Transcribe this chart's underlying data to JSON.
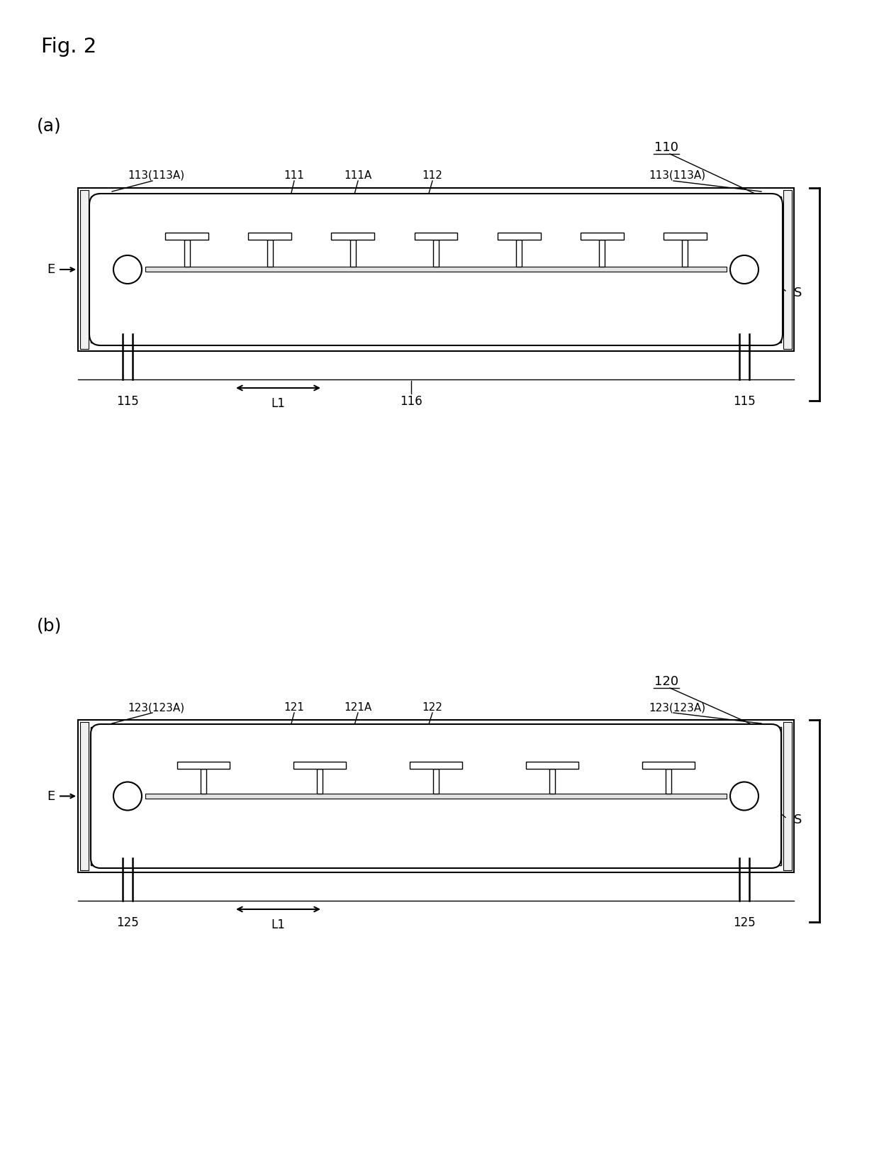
{
  "fig_label": "Fig. 2",
  "panel_a_label": "(a)",
  "panel_b_label": "(b)",
  "ref_110": "110",
  "ref_111": "111",
  "ref_111A": "111A",
  "ref_112": "112",
  "ref_113a_left": "113(113A)",
  "ref_113a_right": "113(113A)",
  "ref_115_left": "115",
  "ref_115_right": "115",
  "ref_116": "116",
  "ref_E": "E",
  "ref_S": "S",
  "ref_L1": "L1",
  "ref_120": "120",
  "ref_121": "121",
  "ref_121A": "121A",
  "ref_122": "122",
  "ref_123a_left": "123(123A)",
  "ref_123a_right": "123(123A)",
  "ref_125_left": "125",
  "ref_125_right": "125",
  "ref_L1b": "L1",
  "ref_Eb": "E",
  "ref_Sb": "S",
  "bg_color": "#ffffff",
  "line_color": "#000000"
}
